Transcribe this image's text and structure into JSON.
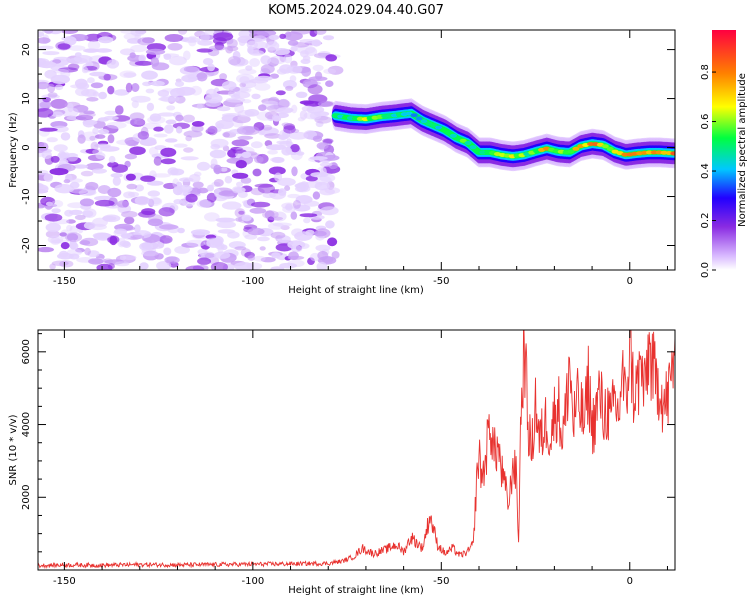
{
  "title": "KOM5.2024.029.04.40.G07",
  "chart_data": [
    {
      "type": "heatmap",
      "xlabel": "Height of straight line (km)",
      "ylabel": "Frequency (Hz)",
      "xlim": [
        -157,
        12
      ],
      "ylim": [
        -25,
        24
      ],
      "xticks": [
        -150,
        -100,
        -50,
        0
      ],
      "yticks": [
        -20,
        -10,
        0,
        10,
        20
      ],
      "colorbar": {
        "label": "Normalized spectral amplitude",
        "range": [
          0.0,
          0.97
        ],
        "ticks": [
          0.0,
          0.2,
          0.4,
          0.6,
          0.8
        ],
        "colormap": [
          "#ffffff",
          "#d8b8ff",
          "#8a2be2",
          "#2200ff",
          "#00c8ff",
          "#00ff40",
          "#ffff00",
          "#ff8000",
          "#ff0040"
        ]
      },
      "noise_region_x": [
        -157,
        -78
      ],
      "ridge": [
        {
          "x": -78,
          "y": 6.5
        },
        {
          "x": -74,
          "y": 6.0
        },
        {
          "x": -70,
          "y": 5.8
        },
        {
          "x": -66,
          "y": 6.3
        },
        {
          "x": -62,
          "y": 6.6
        },
        {
          "x": -58,
          "y": 7.0
        },
        {
          "x": -55,
          "y": 5.5
        },
        {
          "x": -52,
          "y": 4.5
        },
        {
          "x": -49,
          "y": 3.5
        },
        {
          "x": -46,
          "y": 2.0
        },
        {
          "x": -43,
          "y": 1.0
        },
        {
          "x": -40,
          "y": -1.0
        },
        {
          "x": -37,
          "y": -1.0
        },
        {
          "x": -34,
          "y": -1.5
        },
        {
          "x": -31,
          "y": -1.8
        },
        {
          "x": -28,
          "y": -1.5
        },
        {
          "x": -25,
          "y": -0.8
        },
        {
          "x": -22,
          "y": -0.2
        },
        {
          "x": -19,
          "y": -0.8
        },
        {
          "x": -16,
          "y": -1.0
        },
        {
          "x": -13,
          "y": 0.3
        },
        {
          "x": -10,
          "y": 0.8
        },
        {
          "x": -7,
          "y": 0.5
        },
        {
          "x": -4,
          "y": -0.8
        },
        {
          "x": -1,
          "y": -1.5
        },
        {
          "x": 2,
          "y": -1.2
        },
        {
          "x": 5,
          "y": -1.0
        },
        {
          "x": 8,
          "y": -1.0
        },
        {
          "x": 12,
          "y": -1.2
        }
      ],
      "ridge_amplitude": [
        0.45,
        0.55,
        0.6,
        0.55,
        0.5,
        0.45,
        0.4,
        0.45,
        0.5,
        0.55,
        0.5,
        0.5,
        0.55,
        0.7,
        0.6,
        0.55,
        0.6,
        0.75,
        0.6,
        0.65,
        0.7,
        0.8,
        0.7,
        0.65,
        0.8,
        0.85,
        0.75,
        0.85,
        0.8
      ]
    },
    {
      "type": "line",
      "xlabel": "Height of straight line (km)",
      "ylabel": "SNR (10 * v/v)",
      "xlim": [
        -157,
        12
      ],
      "ylim": [
        0,
        6600
      ],
      "xticks": [
        -150,
        -100,
        -50,
        0
      ],
      "yticks": [
        2000,
        4000,
        6000
      ],
      "color": "#e8322f",
      "series": [
        {
          "x": [
            -157,
            -150,
            -140,
            -130,
            -120,
            -110,
            -100,
            -90,
            -80,
            -76,
            -73,
            -71,
            -68,
            -65,
            -62,
            -60,
            -58,
            -55,
            -53,
            -51,
            -49,
            -47,
            -45,
            -43,
            -41.5,
            -40.5,
            -40,
            -39,
            -38,
            -37,
            -36,
            -35,
            -34,
            -33,
            -32,
            -31,
            -30,
            -29.5,
            -29,
            -28.5,
            -28,
            -27,
            -26,
            -25,
            -24,
            -23,
            -22,
            -21,
            -20,
            -19,
            -18,
            -17,
            -16,
            -15,
            -14,
            -13,
            -12,
            -11,
            -10,
            -9,
            -8,
            -7,
            -6,
            -5,
            -4,
            -3,
            -2,
            -1,
            0,
            1,
            2,
            3,
            4,
            5,
            6,
            7,
            8,
            9,
            10,
            11,
            12
          ],
          "y": [
            120,
            140,
            130,
            150,
            140,
            150,
            160,
            170,
            180,
            250,
            380,
            600,
            450,
            550,
            700,
            500,
            900,
            600,
            1500,
            700,
            450,
            600,
            400,
            500,
            700,
            2700,
            3100,
            2500,
            3300,
            4100,
            3200,
            3400,
            2700,
            2200,
            1800,
            3000,
            2500,
            700,
            3800,
            5100,
            6400,
            4000,
            3200,
            4700,
            3500,
            3800,
            4200,
            3600,
            4300,
            4600,
            3700,
            4200,
            5800,
            4000,
            4600,
            4400,
            4000,
            5200,
            3900,
            4300,
            4900,
            4200,
            4500,
            4000,
            4700,
            4200,
            5500,
            4400,
            6400,
            4900,
            5000,
            5600,
            4800,
            6100,
            5600,
            5000,
            5300,
            4500,
            4700,
            5200,
            6400
          ]
        }
      ]
    }
  ]
}
